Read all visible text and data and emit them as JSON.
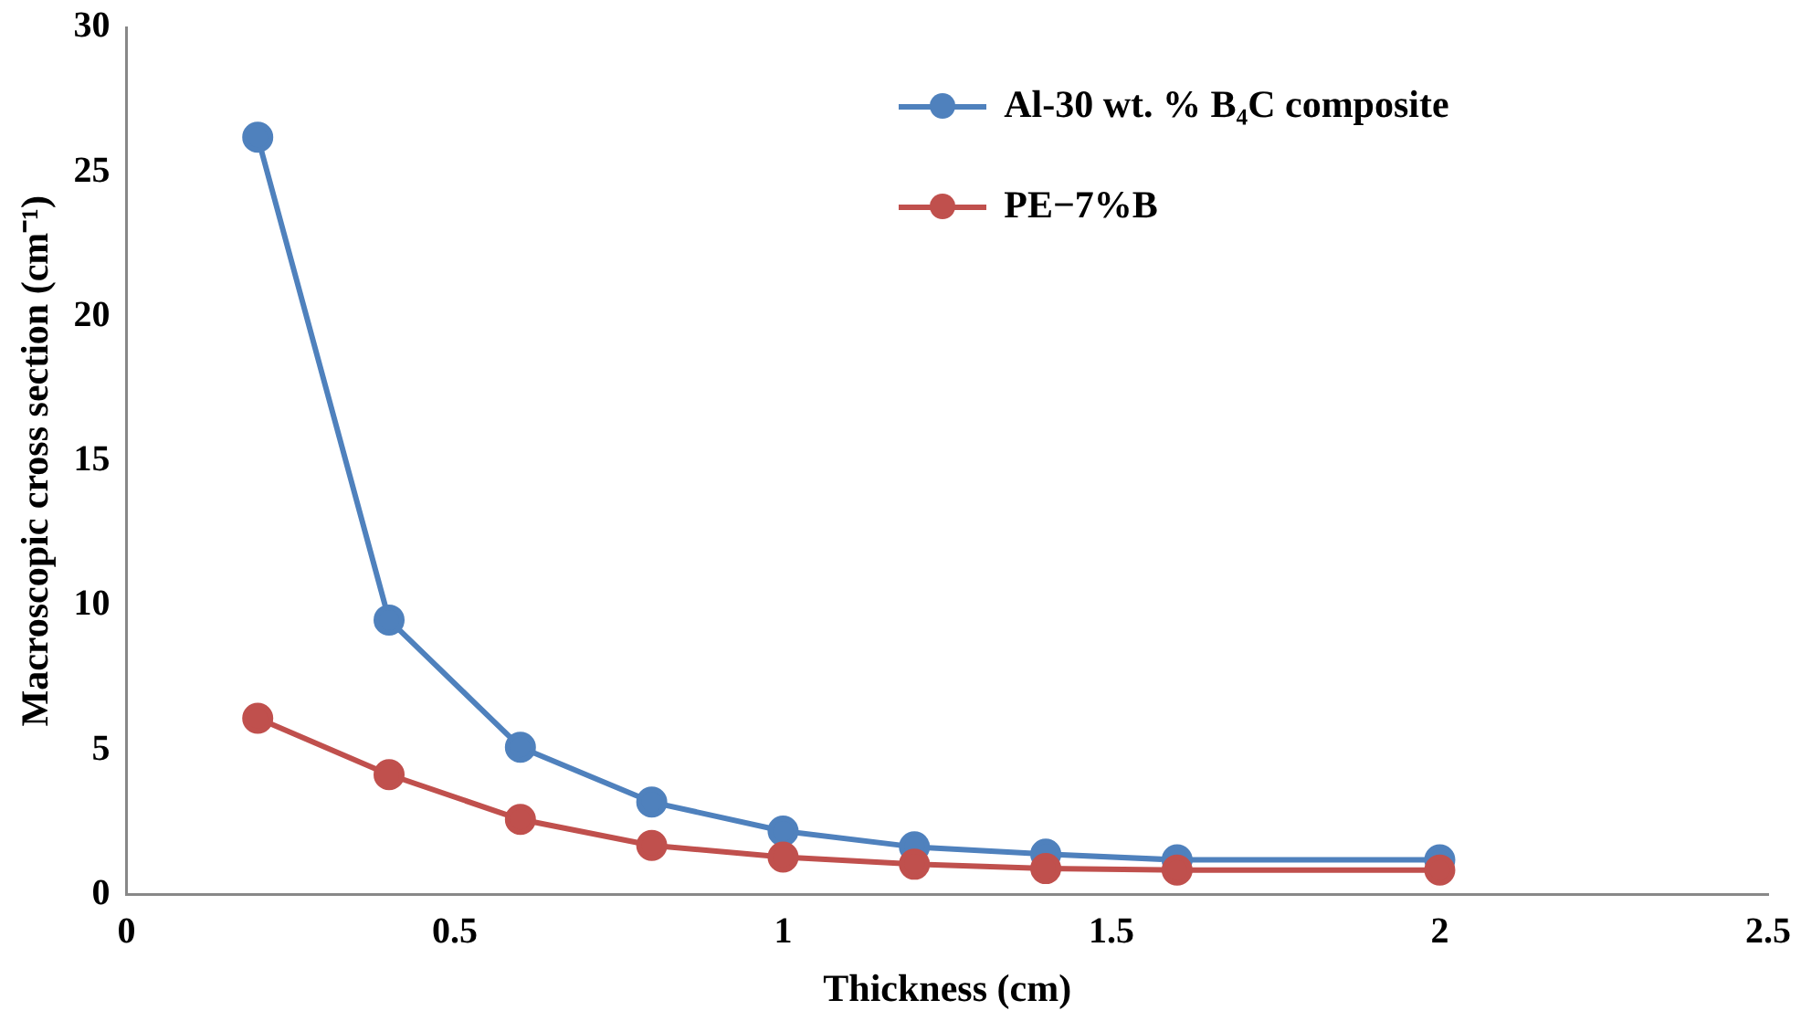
{
  "chart_data": {
    "type": "line",
    "xlabel": "Thickness (cm)",
    "ylabel": "Macroscopic cross section (cm⁻¹)",
    "x": [
      0.2,
      0.4,
      0.6,
      0.8,
      1.0,
      1.2,
      1.4,
      1.6,
      2.0
    ],
    "series": [
      {
        "name": "Al-30 wt. % B₄C composite",
        "color": "#4f81bd",
        "values": [
          26.2,
          9.5,
          5.1,
          3.2,
          2.2,
          1.65,
          1.4,
          1.2,
          1.2
        ]
      },
      {
        "name": "PE−7%B",
        "color": "#c0504d",
        "values": [
          6.1,
          4.15,
          2.6,
          1.7,
          1.3,
          1.05,
          0.9,
          0.85,
          0.85
        ]
      }
    ],
    "xlim": [
      0,
      2.5
    ],
    "xticks": [
      0,
      0.5,
      1,
      1.5,
      2,
      2.5
    ],
    "ylim": [
      0,
      30
    ],
    "yticks": [
      0,
      5,
      10,
      15,
      20,
      25,
      30
    ],
    "grid": false,
    "legend": "top right",
    "marker": "circle",
    "line_style": "solid"
  }
}
